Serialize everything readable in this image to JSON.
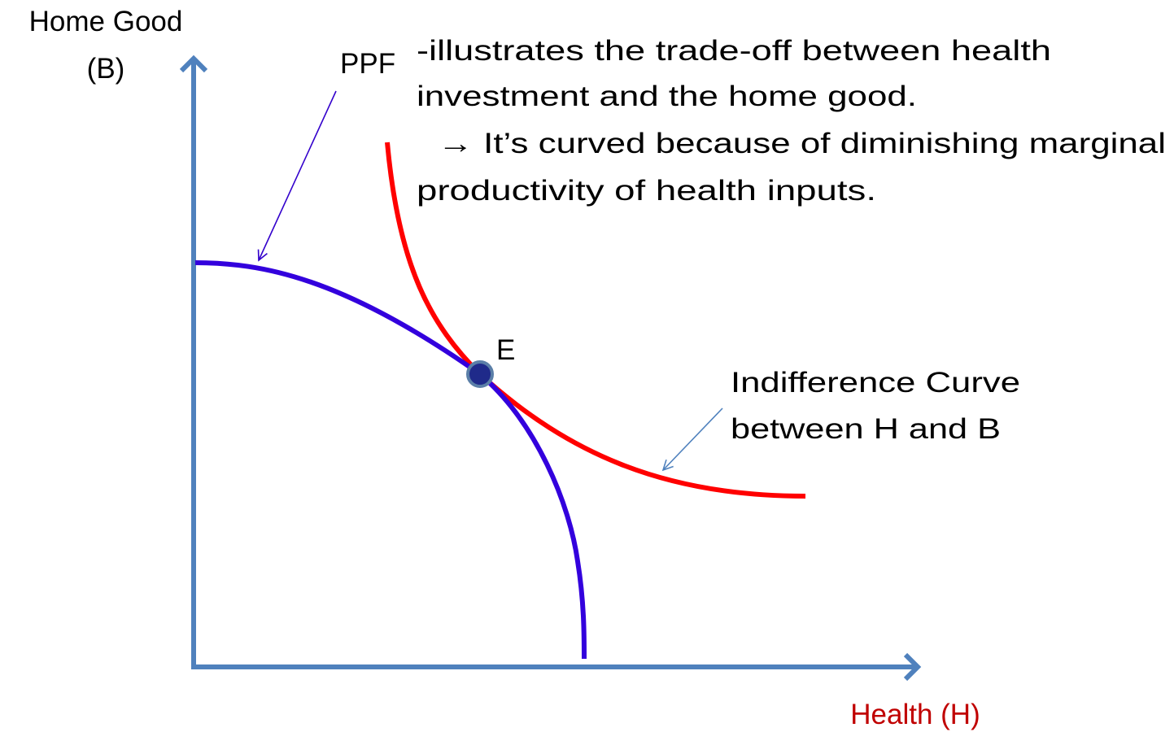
{
  "axes": {
    "y_label": [
      "Home Good",
      "(B)"
    ],
    "x_label": "Health (H)"
  },
  "ppf": {
    "label": "PPF"
  },
  "annotation": {
    "lines": [
      "-illustrates the trade-off between health",
      "investment and the home good.",
      "→ It’s curved because of diminishing marginal",
      "productivity of health inputs."
    ]
  },
  "point": {
    "label": "E"
  },
  "indifference_curve": {
    "label_lines": [
      "Indifference Curve",
      "between H and B"
    ]
  }
}
